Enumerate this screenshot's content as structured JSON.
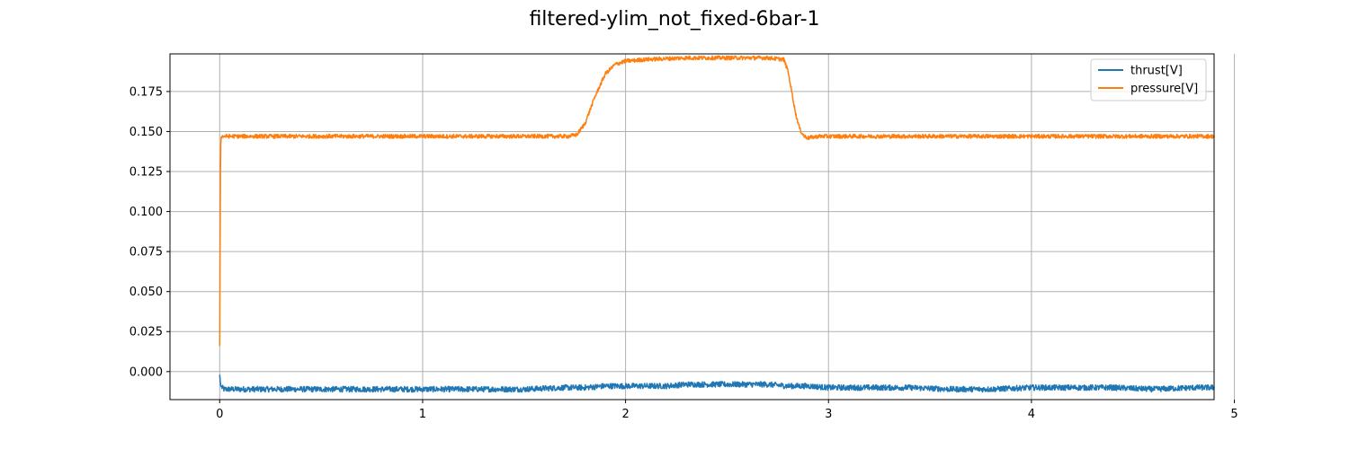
{
  "chart_data": {
    "type": "line",
    "title": "filtered-ylim_not_fixed-6bar-1",
    "xlabel": "",
    "ylabel": "",
    "xlim": [
      -0.245,
      4.9
    ],
    "ylim": [
      -0.0175,
      0.1985
    ],
    "x_ticks": [
      0,
      1,
      2,
      3,
      4,
      5
    ],
    "x_tick_labels": [
      "0",
      "1",
      "2",
      "3",
      "4",
      "5"
    ],
    "y_ticks": [
      0.0,
      0.025,
      0.05,
      0.075,
      0.1,
      0.125,
      0.15,
      0.175
    ],
    "y_tick_labels": [
      "0.000",
      "0.025",
      "0.050",
      "0.075",
      "0.100",
      "0.125",
      "0.150",
      "0.175"
    ],
    "grid": true,
    "legend_position": "top-right",
    "series": [
      {
        "name": "thrust[V]",
        "color": "#1f77b4",
        "x": [
          0,
          0.005,
          0.02,
          0.1,
          0.3,
          0.5,
          0.7,
          0.9,
          1.1,
          1.3,
          1.5,
          1.7,
          1.8,
          1.9,
          2.0,
          2.1,
          2.2,
          2.3,
          2.4,
          2.5,
          2.6,
          2.7,
          2.8,
          2.9,
          3.0,
          3.2,
          3.4,
          3.6,
          3.8,
          4.0,
          4.2,
          4.4,
          4.6,
          4.8,
          4.9
        ],
        "y": [
          -0.002,
          -0.009,
          -0.011,
          -0.011,
          -0.011,
          -0.011,
          -0.011,
          -0.011,
          -0.011,
          -0.011,
          -0.011,
          -0.01,
          -0.01,
          -0.009,
          -0.009,
          -0.009,
          -0.009,
          -0.008,
          -0.008,
          -0.008,
          -0.008,
          -0.008,
          -0.009,
          -0.009,
          -0.01,
          -0.01,
          -0.01,
          -0.011,
          -0.011,
          -0.01,
          -0.01,
          -0.01,
          -0.011,
          -0.01,
          -0.01
        ],
        "noise_amplitude": 0.0035
      },
      {
        "name": "pressure[V]",
        "color": "#ff7f0e",
        "x": [
          0,
          0.002,
          0.004,
          0.006,
          0.008,
          0.01,
          0.02,
          0.5,
          1.0,
          1.5,
          1.72,
          1.76,
          1.8,
          1.85,
          1.9,
          1.95,
          2.0,
          2.1,
          2.3,
          2.5,
          2.6,
          2.7,
          2.78,
          2.8,
          2.82,
          2.84,
          2.86,
          2.88,
          2.9,
          2.95,
          3.0,
          3.5,
          4.0,
          4.5,
          4.9
        ],
        "y": [
          0.016,
          0.08,
          0.13,
          0.145,
          0.147,
          0.147,
          0.147,
          0.147,
          0.147,
          0.147,
          0.147,
          0.148,
          0.155,
          0.172,
          0.186,
          0.192,
          0.194,
          0.195,
          0.196,
          0.196,
          0.196,
          0.196,
          0.195,
          0.188,
          0.174,
          0.16,
          0.151,
          0.147,
          0.146,
          0.147,
          0.147,
          0.147,
          0.147,
          0.147,
          0.147
        ],
        "noise_amplitude": 0.0025
      }
    ]
  }
}
